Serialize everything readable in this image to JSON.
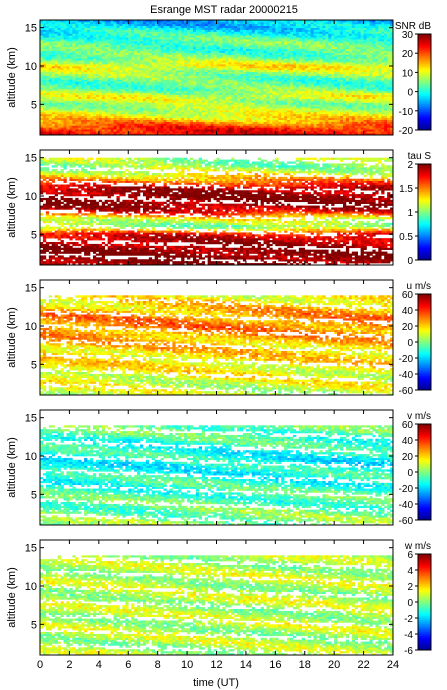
{
  "figure": {
    "title": "Esrange MST radar 20000215",
    "xlabel": "time (UT)",
    "xlim": [
      0,
      24
    ],
    "xticks": [
      0,
      2,
      4,
      6,
      8,
      10,
      12,
      14,
      16,
      18,
      20,
      22,
      24
    ],
    "ylabel": "altitude (km)",
    "ylim": [
      1,
      16
    ],
    "yticks": [
      5,
      10,
      15
    ],
    "colormap": [
      "#00008f",
      "#0000ff",
      "#0080ff",
      "#00ffff",
      "#80ff80",
      "#ffff00",
      "#ff8000",
      "#ff0000",
      "#800000"
    ]
  },
  "chart_data": [
    {
      "type": "heatmap",
      "name": "SNR",
      "colorbar_label": "SNR dB",
      "clim": [
        -20,
        30
      ],
      "cticks": [
        -20,
        -10,
        0,
        10,
        20,
        30
      ],
      "x": [
        0,
        24
      ],
      "ylim": [
        1,
        16
      ],
      "grid": false,
      "altitude_profile_km": [
        1,
        2,
        3,
        4,
        5,
        6,
        7,
        8,
        9,
        10,
        11,
        12,
        13,
        14,
        15,
        16
      ],
      "typical_values": [
        25,
        22,
        14,
        9,
        6,
        10,
        4,
        3,
        6,
        12,
        5,
        2,
        4,
        1,
        -3,
        -5
      ]
    },
    {
      "type": "heatmap",
      "name": "tau",
      "colorbar_label": "tau S",
      "clim": [
        0,
        2
      ],
      "cticks": [
        0,
        0.5,
        1,
        1.5,
        2
      ],
      "x": [
        0,
        24
      ],
      "ylim": [
        1,
        16
      ],
      "grid": false,
      "altitude_profile_km": [
        1,
        2,
        3,
        4,
        5,
        6,
        7,
        8,
        9,
        10,
        11,
        12,
        13,
        14,
        15
      ],
      "typical_values": [
        2.0,
        2.0,
        2.0,
        1.9,
        1.8,
        1.0,
        1.2,
        1.8,
        2.0,
        2.0,
        1.9,
        1.5,
        1.2,
        1.0,
        1.1
      ]
    },
    {
      "type": "heatmap",
      "name": "u",
      "colorbar_label": "u m/s",
      "clim": [
        -60,
        60
      ],
      "cticks": [
        -60,
        -40,
        -20,
        0,
        20,
        40,
        60
      ],
      "x": [
        0,
        24
      ],
      "ylim": [
        1,
        16
      ],
      "grid": false,
      "altitude_profile_km": [
        1,
        2,
        3,
        4,
        5,
        6,
        7,
        8,
        9,
        10,
        11,
        12,
        13,
        14
      ],
      "typical_values": [
        8,
        10,
        12,
        14,
        16,
        18,
        20,
        22,
        26,
        30,
        28,
        24,
        18,
        14
      ]
    },
    {
      "type": "heatmap",
      "name": "v",
      "colorbar_label": "v m/s",
      "clim": [
        -60,
        60
      ],
      "cticks": [
        -60,
        -40,
        -20,
        0,
        20,
        40,
        60
      ],
      "x": [
        0,
        24
      ],
      "ylim": [
        1,
        16
      ],
      "grid": false,
      "altitude_profile_km": [
        1,
        2,
        3,
        4,
        5,
        6,
        7,
        8,
        9,
        10,
        11,
        12,
        13,
        14
      ],
      "typical_values": [
        2,
        0,
        -2,
        -4,
        -6,
        -8,
        -10,
        -12,
        -14,
        -12,
        -10,
        -8,
        -4,
        -2
      ]
    },
    {
      "type": "heatmap",
      "name": "w",
      "colorbar_label": "w m/s",
      "clim": [
        -6,
        6
      ],
      "cticks": [
        -6,
        -4,
        -2,
        0,
        2,
        4,
        6
      ],
      "x": [
        0,
        24
      ],
      "ylim": [
        1,
        16
      ],
      "grid": false,
      "altitude_profile_km": [
        1,
        2,
        3,
        4,
        5,
        6,
        7,
        8,
        9,
        10,
        11,
        12,
        13,
        14
      ],
      "typical_values": [
        0.5,
        0.6,
        0.5,
        0.6,
        0.7,
        0.6,
        0.6,
        0.7,
        0.6,
        0.6,
        0.7,
        0.6,
        0.6,
        0.5
      ]
    }
  ]
}
